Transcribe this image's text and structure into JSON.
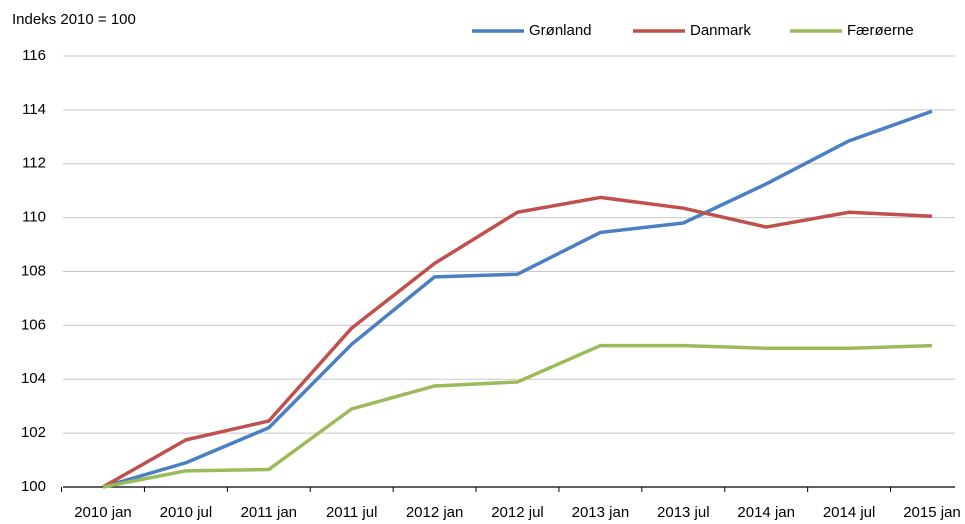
{
  "chart_data": {
    "type": "line",
    "y_axis_label": "Indeks 2010 = 100",
    "categories": [
      "2010 jan",
      "2010 jul",
      "2011 jan",
      "2011 jul",
      "2012 jan",
      "2012 jul",
      "2013 jan",
      "2013 jul",
      "2014 jan",
      "2014 jul",
      "2015 jan"
    ],
    "series": [
      {
        "name": "Grønland",
        "color": "#4a7fc1",
        "values": [
          100,
          100.9,
          102.2,
          105.3,
          107.8,
          107.9,
          109.45,
          109.8,
          111.25,
          112.85,
          113.95
        ]
      },
      {
        "name": "Danmark",
        "color": "#c0504d",
        "values": [
          100,
          101.75,
          102.45,
          105.9,
          108.3,
          110.2,
          110.75,
          110.35,
          109.65,
          110.2,
          110.05
        ]
      },
      {
        "name": "Færøerne",
        "color": "#9bbb59",
        "values": [
          100,
          100.6,
          100.65,
          102.9,
          103.75,
          103.9,
          105.25,
          105.25,
          105.15,
          105.15,
          105.25
        ]
      }
    ],
    "ylim": [
      100,
      116
    ],
    "yticks": [
      100,
      102,
      104,
      106,
      108,
      110,
      112,
      114,
      116
    ],
    "grid": true,
    "legend": "top-right"
  }
}
